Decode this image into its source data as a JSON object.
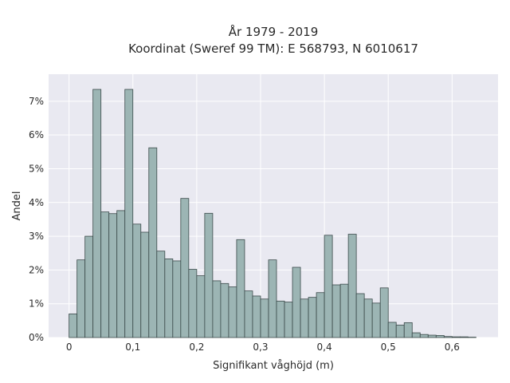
{
  "chart_data": {
    "type": "bar",
    "title_line1": "År 1979 - 2019",
    "title_line2": "Koordinat (Sweref 99 TM): E 568793, N 6010617",
    "xlabel": "Signifikant våghöjd (m)",
    "ylabel": "Andel",
    "xlim": [
      -0.032,
      0.672
    ],
    "ylim": [
      0,
      7.8
    ],
    "bin_width": 0.0125,
    "grid": true,
    "x_ticks": [
      0,
      0.1,
      0.2,
      0.3,
      0.4,
      0.5,
      0.6
    ],
    "x_tick_labels": [
      "0",
      "0,1",
      "0,2",
      "0,3",
      "0,4",
      "0,5",
      "0,6"
    ],
    "y_ticks": [
      0,
      1,
      2,
      3,
      4,
      5,
      6,
      7
    ],
    "y_tick_labels": [
      "0%",
      "1%",
      "2%",
      "3%",
      "4%",
      "5%",
      "6%",
      "7%"
    ],
    "bin_starts": [
      0,
      0.0125,
      0.025,
      0.0375,
      0.05,
      0.0625,
      0.075,
      0.0875,
      0.1,
      0.1125,
      0.125,
      0.1375,
      0.15,
      0.1625,
      0.175,
      0.1875,
      0.2,
      0.2125,
      0.225,
      0.2375,
      0.25,
      0.2625,
      0.275,
      0.2875,
      0.3,
      0.3125,
      0.325,
      0.3375,
      0.35,
      0.3625,
      0.375,
      0.3875,
      0.4,
      0.4125,
      0.425,
      0.4375,
      0.45,
      0.4625,
      0.475,
      0.4875,
      0.5,
      0.5125,
      0.525,
      0.5375,
      0.55,
      0.5625,
      0.575,
      0.5875,
      0.6,
      0.6125,
      0.625
    ],
    "values": [
      0.7,
      2.3,
      3.0,
      7.35,
      3.72,
      3.67,
      3.76,
      7.35,
      3.36,
      3.12,
      5.62,
      2.56,
      2.33,
      2.27,
      4.12,
      2.02,
      1.83,
      3.68,
      1.68,
      1.6,
      1.5,
      2.9,
      1.38,
      1.23,
      1.14,
      2.3,
      1.08,
      1.05,
      2.08,
      1.14,
      1.19,
      1.33,
      3.03,
      1.56,
      1.58,
      3.06,
      1.3,
      1.14,
      1.02,
      1.47,
      0.45,
      0.37,
      0.44,
      0.14,
      0.09,
      0.07,
      0.06,
      0.03,
      0.02,
      0.02,
      0.01
    ],
    "colors": {
      "bar_fill": "#9cb5b4",
      "bar_stroke": "#3b4a4a",
      "plot_bg": "#e9e9f1",
      "grid": "#ffffff"
    }
  }
}
